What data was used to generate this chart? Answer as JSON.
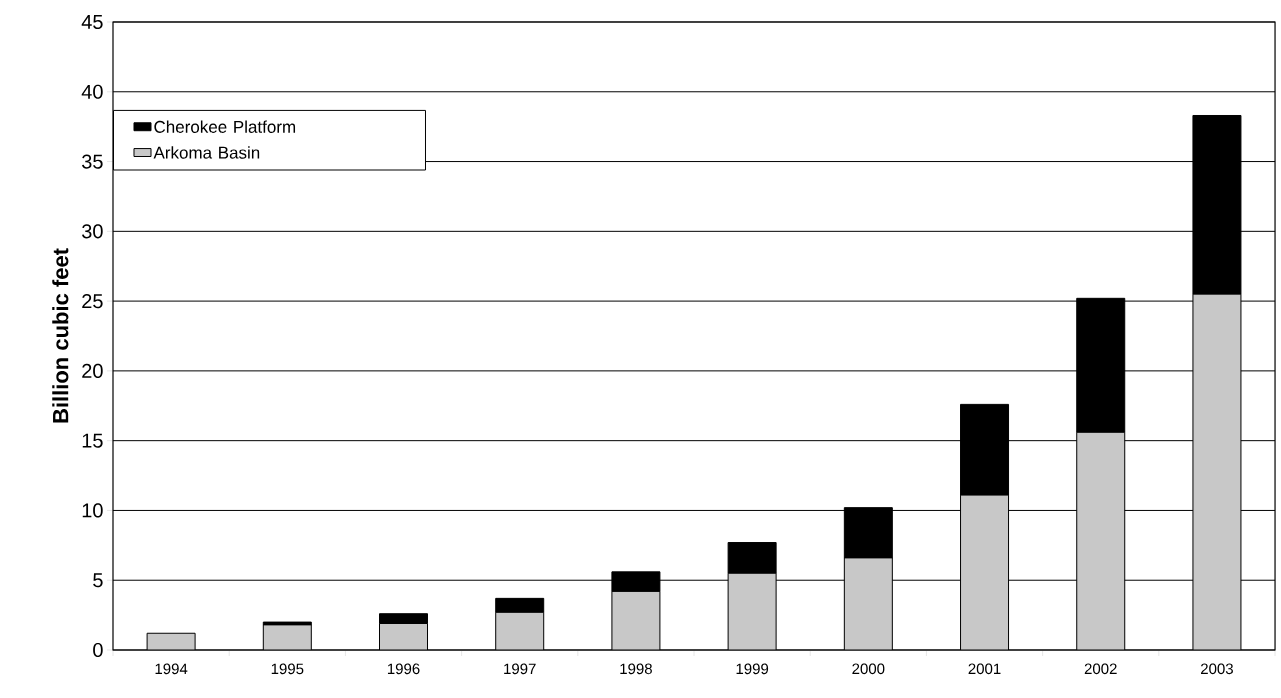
{
  "chart_data": {
    "type": "bar",
    "stacked": true,
    "ylabel": "Billion cubic feet",
    "categories": [
      "1994",
      "1995",
      "1996",
      "1997",
      "1998",
      "1999",
      "2000",
      "2001",
      "2002",
      "2003"
    ],
    "series": [
      {
        "name": "Arkoma Basin",
        "color": "#c8c8c8",
        "values": [
          1.2,
          1.8,
          1.9,
          2.7,
          4.2,
          5.5,
          6.6,
          11.1,
          15.6,
          25.5
        ]
      },
      {
        "name": "Cherokee Platform",
        "color": "#000000",
        "values": [
          0,
          0.2,
          0.7,
          1.0,
          1.4,
          2.2,
          3.6,
          6.5,
          9.6,
          12.8
        ]
      }
    ],
    "ylim": [
      0,
      45
    ],
    "yticks": [
      0,
      5,
      10,
      15,
      20,
      25,
      30,
      35,
      40,
      45
    ],
    "grid": "y",
    "legend": "top left"
  }
}
